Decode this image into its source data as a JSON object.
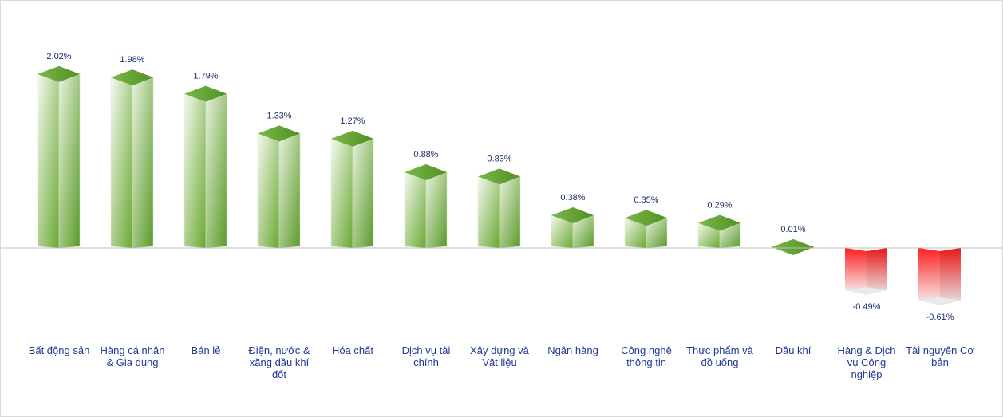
{
  "chart_data": {
    "type": "bar",
    "title": "",
    "xlabel": "",
    "ylabel": "",
    "categories": [
      "Bất động sản",
      "Hàng cá nhân & Gia dụng",
      "Bán lẻ",
      "Điện, nước & xăng dầu khí đốt",
      "Hóa chất",
      "Dịch vụ tài chính",
      "Xây dựng và Vật liệu",
      "Ngân hàng",
      "Công nghệ thông tin",
      "Thực phẩm và đồ uống",
      "Dầu khí",
      "Hàng & Dịch vụ Công nghiệp",
      "Tài nguyên Cơ bản"
    ],
    "category_lines": [
      [
        "Bất động sản"
      ],
      [
        "Hàng cá nhân",
        "& Gia dụng"
      ],
      [
        "Bán lẻ"
      ],
      [
        "Điện, nước &",
        "xăng dầu khí",
        "đốt"
      ],
      [
        "Hóa chất"
      ],
      [
        "Dịch vụ tài",
        "chính"
      ],
      [
        "Xây dựng và",
        "Vật liệu"
      ],
      [
        "Ngân hàng"
      ],
      [
        "Công nghệ",
        "thông tin"
      ],
      [
        "Thực phẩm và",
        "đồ uống"
      ],
      [
        "Dầu khí"
      ],
      [
        "Hàng & Dịch",
        "vụ Công",
        "nghiệp"
      ],
      [
        "Tài nguyên Cơ",
        "bản"
      ]
    ],
    "values": [
      2.02,
      1.98,
      1.79,
      1.33,
      1.27,
      0.88,
      0.83,
      0.38,
      0.35,
      0.29,
      0.01,
      -0.49,
      -0.61
    ],
    "value_labels": [
      "2.02%",
      "1.98%",
      "1.79%",
      "1.33%",
      "1.27%",
      "0.88%",
      "0.83%",
      "0.38%",
      "0.35%",
      "0.29%",
      "0.01%",
      "-0.49%",
      "-0.61%"
    ],
    "grid": false,
    "legend": "none",
    "colors": {
      "positive": "#6aa832",
      "positive_light": "#f2f8ec",
      "negative": "#ff2a2a",
      "negative_light": "#f2f2f2",
      "axis": "#bfbfbf",
      "value_text": "#1f2d6b",
      "category_text": "#1f3a93"
    }
  }
}
